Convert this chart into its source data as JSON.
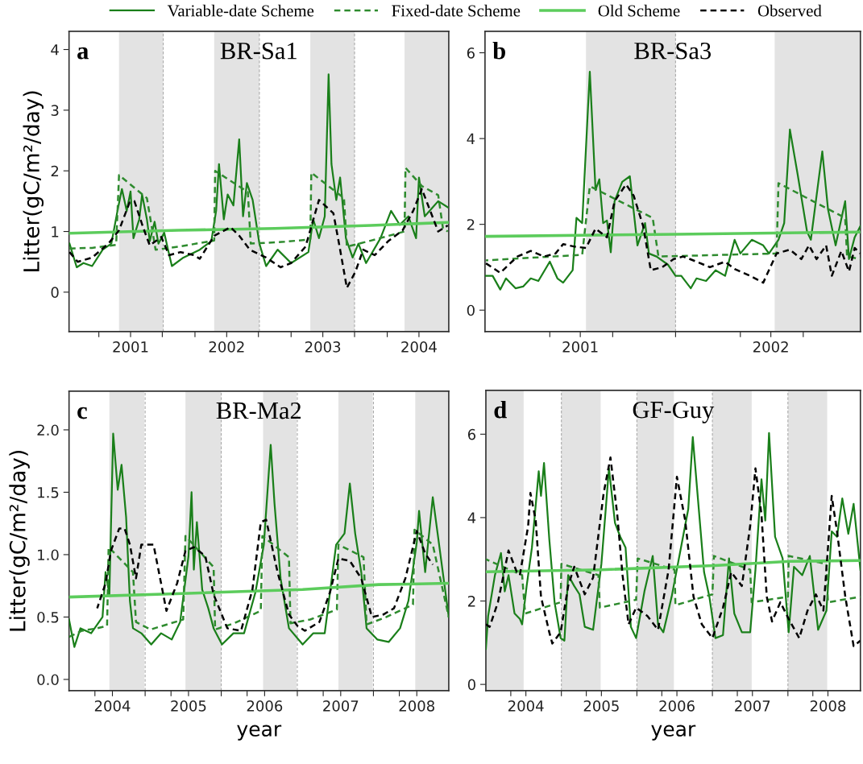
{
  "chart_data": [
    {
      "type": "line",
      "title": "BR-Sa1",
      "ylabel": "Litter(gC/m²/day)",
      "annotations": [
        "a"
      ],
      "legend": "top",
      "xlim": [
        2000.36,
        2004.31
      ],
      "ylim": [
        -0.65,
        4.3
      ],
      "yticks": [
        0,
        1,
        2,
        3,
        4
      ],
      "xticks": [
        {
          "value": 2000.67,
          "label": null
        },
        2001,
        {
          "value": 2001.33,
          "label": null
        },
        {
          "value": 2001.67,
          "label": null
        },
        2002,
        {
          "value": 2002.33,
          "label": null
        },
        {
          "value": 2002.67,
          "label": null
        },
        2003,
        {
          "value": 2003.33,
          "label": null
        },
        {
          "value": 2003.67,
          "label": null
        },
        2004
      ],
      "bands": [
        {
          "axis": "x",
          "from": 2000.88,
          "to": 2001.34,
          "color": "#e3e3e3"
        },
        {
          "axis": "x",
          "from": 2001.87,
          "to": 2002.34,
          "color": "#e3e3e3"
        },
        {
          "axis": "x",
          "from": 2002.87,
          "to": 2003.33,
          "color": "#e3e3e3"
        },
        {
          "axis": "x",
          "from": 2003.85,
          "to": 2004.31,
          "color": "#e3e3e3"
        }
      ],
      "ref_lines": [
        {
          "axis": "x",
          "value": 2001.34,
          "color": "#aaaaaa",
          "line_style": "dashed"
        },
        {
          "axis": "x",
          "value": 2002.34,
          "color": "#aaaaaa",
          "line_style": "dashed"
        },
        {
          "axis": "x",
          "value": 2003.33,
          "color": "#aaaaaa",
          "line_style": "dashed"
        }
      ],
      "series": [
        {
          "name": "Variable-date Scheme",
          "color": "#1a7f1a",
          "line_style": "solid",
          "x": [
            2000.365,
            2000.44,
            2000.51,
            2000.6,
            2000.71,
            2000.8,
            2000.87,
            2000.91,
            2000.96,
            2001.0,
            2001.03,
            2001.09,
            2001.12,
            2001.17,
            2001.2,
            2001.25,
            2001.29,
            2001.35,
            2001.39,
            2001.43,
            2001.55,
            2001.72,
            2001.84,
            2001.89,
            2001.92,
            2001.97,
            2002.01,
            2002.07,
            2002.13,
            2002.17,
            2002.21,
            2002.27,
            2002.34,
            2002.41,
            2002.53,
            2002.67,
            2002.85,
            2002.9,
            2002.96,
            2003.02,
            2003.06,
            2003.09,
            2003.14,
            2003.18,
            2003.24,
            2003.31,
            2003.37,
            2003.45,
            2003.6,
            2003.71,
            2003.8,
            2003.89,
            2003.97,
            2004.0,
            2004.06,
            2004.2,
            2004.3
          ],
          "values": [
            0.8,
            0.41,
            0.48,
            0.43,
            0.7,
            0.8,
            1.39,
            1.7,
            1.34,
            1.66,
            0.89,
            1.2,
            1.61,
            1.2,
            0.84,
            1.16,
            0.8,
            0.98,
            0.7,
            0.43,
            0.57,
            0.7,
            0.84,
            1.34,
            2.11,
            1.2,
            1.61,
            1.43,
            2.52,
            1.25,
            1.8,
            1.52,
            0.8,
            0.43,
            0.7,
            0.48,
            0.66,
            1.2,
            0.89,
            1.25,
            3.59,
            2.11,
            1.52,
            1.89,
            0.89,
            0.57,
            0.8,
            0.48,
            0.89,
            1.34,
            1.11,
            1.25,
            0.89,
            1.89,
            1.25,
            1.5,
            1.4
          ]
        },
        {
          "name": "Fixed-date Scheme",
          "color": "#2e8b2e",
          "line_style": "dashed",
          "x": [
            2000.365,
            2000.6,
            2000.85,
            2000.88,
            2001.17,
            2001.26,
            2001.5,
            2001.87,
            2001.88,
            2002.22,
            2002.25,
            2002.6,
            2002.87,
            2002.88,
            2003.22,
            2003.25,
            2003.5,
            2003.85,
            2003.86,
            2004.03,
            2004.2,
            2004.25,
            2004.3
          ],
          "values": [
            0.72,
            0.73,
            0.78,
            1.93,
            1.55,
            0.7,
            0.75,
            0.85,
            2.0,
            1.65,
            0.8,
            0.83,
            0.87,
            1.97,
            1.55,
            0.75,
            0.85,
            1.0,
            2.05,
            1.75,
            1.6,
            1.05,
            1.0
          ]
        },
        {
          "name": "Old Scheme",
          "color": "#5ccc5c",
          "line_style": "solid",
          "x": [
            2000.365,
            2001.5,
            2002.5,
            2003.5,
            2004.3
          ],
          "values": [
            0.97,
            1.02,
            1.05,
            1.1,
            1.15
          ]
        },
        {
          "name": "Observed",
          "color": "#000000",
          "line_style": "dashed",
          "x": [
            2000.365,
            2000.45,
            2000.6,
            2000.77,
            2000.88,
            2000.99,
            2001.04,
            2001.13,
            2001.2,
            2001.32,
            2001.4,
            2001.52,
            2001.66,
            2001.72,
            2001.87,
            2002.04,
            2002.13,
            2002.24,
            2002.41,
            2002.56,
            2002.67,
            2002.82,
            2002.96,
            2003.11,
            2003.18,
            2003.25,
            2003.34,
            2003.42,
            2003.54,
            2003.68,
            2003.83,
            2003.94,
            2004.03,
            2004.2,
            2004.3
          ],
          "values": [
            0.66,
            0.5,
            0.57,
            0.8,
            1.02,
            1.48,
            1.5,
            1.07,
            0.77,
            0.91,
            0.61,
            0.66,
            0.61,
            0.55,
            0.93,
            1.07,
            0.93,
            0.7,
            0.57,
            0.41,
            0.48,
            0.75,
            1.52,
            1.3,
            0.7,
            0.07,
            0.34,
            0.7,
            0.61,
            0.84,
            1.02,
            1.34,
            1.7,
            1.0,
            1.1
          ]
        }
      ]
    },
    {
      "type": "line",
      "title": "BR-Sa3",
      "annotations": [
        "b"
      ],
      "xlim": [
        2000.5,
        2002.47
      ],
      "ylim": [
        -0.5,
        6.5
      ],
      "yticks": [
        0,
        2,
        4,
        6
      ],
      "xticks": [
        {
          "value": 2000.84,
          "label": null
        },
        2001,
        {
          "value": 2001.17,
          "label": null
        },
        {
          "value": 2001.5,
          "label": null
        },
        {
          "value": 2001.84,
          "label": null
        },
        2002,
        {
          "value": 2002.17,
          "label": null
        }
      ],
      "bands": [
        {
          "axis": "x",
          "from": 2001.03,
          "to": 2001.5,
          "color": "#e3e3e3"
        },
        {
          "axis": "x",
          "from": 2002.02,
          "to": 2002.47,
          "color": "#e3e3e3"
        }
      ],
      "ref_lines": [
        {
          "axis": "x",
          "value": 2001.5,
          "color": "#aaaaaa",
          "line_style": "dashed"
        }
      ],
      "series": [
        {
          "color": "#1a7f1a",
          "line_style": "solid",
          "x": [
            2000.505,
            2000.54,
            2000.58,
            2000.61,
            2000.66,
            2000.7,
            2000.74,
            2000.78,
            2000.84,
            2000.88,
            2000.91,
            2000.96,
            2000.98,
            2001.01,
            2001.05,
            2001.08,
            2001.1,
            2001.12,
            2001.14,
            2001.16,
            2001.18,
            2001.22,
            2001.26,
            2001.3,
            2001.34,
            2001.36,
            2001.4,
            2001.46,
            2001.5,
            2001.53,
            2001.58,
            2001.61,
            2001.66,
            2001.71,
            2001.76,
            2001.81,
            2001.84,
            2001.9,
            2001.96,
            2001.99,
            2002.04,
            2002.07,
            2002.1,
            2002.14,
            2002.19,
            2002.21,
            2002.27,
            2002.3,
            2002.34,
            2002.39,
            2002.41,
            2002.44,
            2002.47
          ],
          "values": [
            0.8,
            0.8,
            0.48,
            0.74,
            0.51,
            0.55,
            0.74,
            0.68,
            1.13,
            0.74,
            0.64,
            0.93,
            2.15,
            2.03,
            5.56,
            2.8,
            3.05,
            2.03,
            2.09,
            1.35,
            2.54,
            2.99,
            3.12,
            1.51,
            2.03,
            1.32,
            1.25,
            1.06,
            0.8,
            0.8,
            0.51,
            0.74,
            0.68,
            0.93,
            0.8,
            1.64,
            1.32,
            1.64,
            1.51,
            1.32,
            1.64,
            2.03,
            4.21,
            3.18,
            1.83,
            1.64,
            3.7,
            2.35,
            1.51,
            2.54,
            1.19,
            1.7,
            1.96
          ]
        },
        {
          "color": "#2e8b2e",
          "line_style": "dashed",
          "x": [
            2000.505,
            2001.01,
            2001.05,
            2001.38,
            2001.41,
            2002.03,
            2002.04,
            2002.39,
            2002.4,
            2002.47
          ],
          "values": [
            1.16,
            1.29,
            2.89,
            2.15,
            1.25,
            1.32,
            2.96,
            2.15,
            1.25,
            1.19
          ]
        },
        {
          "color": "#5ccc5c",
          "line_style": "solid",
          "x": [
            2000.505,
            2001.5,
            2002.47
          ],
          "values": [
            1.72,
            1.77,
            1.82
          ]
        },
        {
          "color": "#000000",
          "line_style": "dashed",
          "x": [
            2000.505,
            2000.58,
            2000.67,
            2000.74,
            2000.81,
            2000.87,
            2000.91,
            2000.97,
            2001.03,
            2001.08,
            2001.14,
            2001.18,
            2001.24,
            2001.28,
            2001.33,
            2001.37,
            2001.43,
            2001.49,
            2001.54,
            2001.61,
            2001.68,
            2001.76,
            2001.81,
            2001.89,
            2001.96,
            2002.03,
            2002.1,
            2002.16,
            2002.2,
            2002.24,
            2002.29,
            2002.32,
            2002.37,
            2002.41,
            2002.44,
            2002.47
          ],
          "values": [
            1.09,
            0.87,
            1.25,
            1.38,
            1.25,
            1.32,
            1.54,
            1.48,
            1.45,
            1.9,
            1.7,
            2.54,
            2.93,
            2.67,
            1.96,
            0.93,
            1.0,
            1.19,
            1.25,
            1.13,
            1.0,
            1.13,
            0.96,
            0.8,
            0.64,
            1.32,
            1.41,
            1.19,
            1.51,
            1.19,
            1.51,
            0.8,
            1.38,
            0.9,
            1.45,
            1.32
          ]
        }
      ]
    },
    {
      "type": "line",
      "title": "BR-Ma2",
      "ylabel": "Litter(gC/m²/day)",
      "xlabel": "year",
      "annotations": [
        "c"
      ],
      "xlim": [
        2003.43,
        2008.42
      ],
      "ylim": [
        -0.09,
        2.31
      ],
      "yticks": [
        {
          "value": 0,
          "label": "0.0"
        },
        0.5,
        {
          "value": 1,
          "label": "1.0"
        },
        1.5,
        {
          "value": 2,
          "label": "2.0"
        }
      ],
      "xticks": [
        {
          "value": 2003.77,
          "label": null
        },
        2004,
        {
          "value": 2004.43,
          "label": null
        },
        {
          "value": 2004.77,
          "label": null
        },
        2005,
        {
          "value": 2005.43,
          "label": null
        },
        {
          "value": 2005.77,
          "label": null
        },
        2006,
        {
          "value": 2006.43,
          "label": null
        },
        {
          "value": 2006.77,
          "label": null
        },
        2007,
        {
          "value": 2007.43,
          "label": null
        },
        {
          "value": 2007.77,
          "label": null
        },
        2008
      ],
      "bands": [
        {
          "axis": "x",
          "from": 2003.96,
          "to": 2004.42,
          "color": "#e3e3e3"
        },
        {
          "axis": "x",
          "from": 2004.96,
          "to": 2005.43,
          "color": "#e3e3e3"
        },
        {
          "axis": "x",
          "from": 2005.98,
          "to": 2006.42,
          "color": "#e3e3e3"
        },
        {
          "axis": "x",
          "from": 2006.97,
          "to": 2007.42,
          "color": "#e3e3e3"
        },
        {
          "axis": "x",
          "from": 2007.98,
          "to": 2008.42,
          "color": "#e3e3e3"
        }
      ],
      "ref_lines": [
        {
          "axis": "x",
          "value": 2004.43,
          "color": "#aaaaaa",
          "line_style": "dashed"
        },
        {
          "axis": "x",
          "value": 2005.43,
          "color": "#aaaaaa",
          "line_style": "dashed"
        },
        {
          "axis": "x",
          "value": 2006.43,
          "color": "#aaaaaa",
          "line_style": "dashed"
        },
        {
          "axis": "x",
          "value": 2007.43,
          "color": "#aaaaaa",
          "line_style": "dashed"
        }
      ],
      "series": [
        {
          "color": "#1a7f1a",
          "line_style": "solid",
          "x": [
            2003.43,
            2003.5,
            2003.58,
            2003.72,
            2003.87,
            2003.91,
            2003.96,
            2004.01,
            2004.07,
            2004.12,
            2004.18,
            2004.23,
            2004.27,
            2004.38,
            2004.51,
            2004.64,
            2004.78,
            2004.89,
            2005.0,
            2005.04,
            2005.07,
            2005.11,
            2005.18,
            2005.26,
            2005.33,
            2005.44,
            2005.59,
            2005.73,
            2005.88,
            2005.99,
            2006.08,
            2006.13,
            2006.21,
            2006.32,
            2006.5,
            2006.64,
            2006.79,
            2006.94,
            2007.05,
            2007.12,
            2007.19,
            2007.27,
            2007.34,
            2007.48,
            2007.63,
            2007.78,
            2007.89,
            2008.0,
            2008.03,
            2008.11,
            2008.21,
            2008.42
          ],
          "values": [
            0.48,
            0.26,
            0.41,
            0.37,
            0.5,
            0.86,
            0.68,
            1.97,
            1.52,
            1.72,
            1.3,
            0.63,
            0.41,
            0.37,
            0.28,
            0.37,
            0.32,
            0.46,
            0.99,
            1.5,
            0.88,
            1.26,
            0.72,
            0.57,
            0.41,
            0.28,
            0.37,
            0.37,
            0.7,
            1.08,
            1.88,
            1.41,
            0.81,
            0.41,
            0.28,
            0.37,
            0.37,
            1.08,
            1.17,
            1.57,
            1.17,
            0.86,
            0.41,
            0.32,
            0.3,
            0.41,
            0.63,
            1.1,
            1.35,
            0.86,
            1.46,
            0.5
          ]
        },
        {
          "color": "#2e8b2e",
          "line_style": "dashed",
          "x": [
            2003.43,
            2003.6,
            2003.8,
            2003.93,
            2003.95,
            2004.27,
            2004.31,
            2004.5,
            2004.93,
            2004.96,
            2005.33,
            2005.35,
            2005.6,
            2005.95,
            2005.97,
            2006.32,
            2006.34,
            2006.6,
            2006.95,
            2006.97,
            2007.3,
            2007.34,
            2007.6,
            2007.95,
            2007.97,
            2008.21,
            2008.42
          ],
          "values": [
            0.34,
            0.39,
            0.41,
            0.43,
            1.06,
            0.86,
            0.46,
            0.4,
            0.48,
            1.15,
            0.9,
            0.4,
            0.45,
            0.55,
            1.15,
            0.98,
            0.45,
            0.48,
            0.56,
            1.08,
            0.98,
            0.44,
            0.5,
            0.6,
            1.2,
            1.08,
            0.5
          ]
        },
        {
          "color": "#5ccc5c",
          "line_style": "solid",
          "x": [
            2003.43,
            2005.0,
            2006.5,
            2007.5,
            2008.42
          ],
          "values": [
            0.66,
            0.69,
            0.72,
            0.76,
            0.77
          ]
        },
        {
          "color": "#000000",
          "line_style": "dashed",
          "x": [
            2003.8,
            2003.91,
            2003.98,
            2004.09,
            2004.16,
            2004.23,
            2004.31,
            2004.38,
            2004.42,
            2004.54,
            2004.71,
            2004.85,
            2004.96,
            2005.07,
            2005.22,
            2005.33,
            2005.51,
            2005.69,
            2005.84,
            2005.95,
            2006.02,
            2006.17,
            2006.32,
            2006.43,
            2006.53,
            2006.72,
            2006.86,
            2006.97,
            2007.12,
            2007.27,
            2007.41,
            2007.56,
            2007.7,
            2007.85,
            2008.0,
            2008.11,
            2008.21
          ],
          "values": [
            0.57,
            0.77,
            1.03,
            1.21,
            1.21,
            1.08,
            0.81,
            1.08,
            1.08,
            1.08,
            0.55,
            0.77,
            1.03,
            1.06,
            0.99,
            0.68,
            0.41,
            0.39,
            0.72,
            1.26,
            1.28,
            0.86,
            0.52,
            0.43,
            0.39,
            0.46,
            0.7,
            0.97,
            0.95,
            0.81,
            0.5,
            0.52,
            0.57,
            0.81,
            1.19,
            1.01,
            0.92
          ]
        }
      ]
    },
    {
      "type": "line",
      "title": "GF-Guy",
      "xlabel": "year",
      "annotations": [
        "d"
      ],
      "xlim": [
        2003.47,
        2008.43
      ],
      "ylim": [
        -0.15,
        7.05
      ],
      "yticks": [
        0,
        2,
        4,
        6
      ],
      "xticks": [
        {
          "value": 2003.8,
          "label": null
        },
        2004,
        {
          "value": 2004.47,
          "label": null
        },
        {
          "value": 2004.8,
          "label": null
        },
        2005,
        {
          "value": 2005.47,
          "label": null
        },
        {
          "value": 2005.8,
          "label": null
        },
        2006,
        {
          "value": 2006.47,
          "label": null
        },
        {
          "value": 2006.8,
          "label": null
        },
        2007,
        {
          "value": 2007.47,
          "label": null
        },
        {
          "value": 2007.8,
          "label": null
        },
        2008
      ],
      "bands": [
        {
          "axis": "x",
          "from": 2003.47,
          "to": 2003.97,
          "color": "#e3e3e3"
        },
        {
          "axis": "x",
          "from": 2004.47,
          "to": 2004.99,
          "color": "#e3e3e3"
        },
        {
          "axis": "x",
          "from": 2005.47,
          "to": 2005.96,
          "color": "#e3e3e3"
        },
        {
          "axis": "x",
          "from": 2006.47,
          "to": 2006.99,
          "color": "#e3e3e3"
        },
        {
          "axis": "x",
          "from": 2007.47,
          "to": 2007.99,
          "color": "#e3e3e3"
        }
      ],
      "ref_lines": [
        {
          "axis": "x",
          "value": 2004.47,
          "color": "#aaaaaa",
          "line_style": "dashed"
        },
        {
          "axis": "x",
          "value": 2005.47,
          "color": "#aaaaaa",
          "line_style": "dashed"
        },
        {
          "axis": "x",
          "value": 2006.47,
          "color": "#aaaaaa",
          "line_style": "dashed"
        },
        {
          "axis": "x",
          "value": 2007.47,
          "color": "#aaaaaa",
          "line_style": "dashed"
        }
      ],
      "series": [
        {
          "color": "#1a7f1a",
          "line_style": "solid",
          "x": [
            2003.47,
            2003.5,
            2003.59,
            2003.67,
            2003.72,
            2003.77,
            2003.85,
            2003.92,
            2003.95,
            2004.01,
            2004.08,
            2004.17,
            2004.2,
            2004.24,
            2004.31,
            2004.38,
            2004.46,
            2004.51,
            2004.56,
            2004.64,
            2004.71,
            2004.78,
            2004.89,
            2005.0,
            2005.1,
            2005.18,
            2005.25,
            2005.32,
            2005.39,
            2005.46,
            2005.57,
            2005.68,
            2005.75,
            2005.82,
            2005.93,
            2006.04,
            2006.15,
            2006.21,
            2006.29,
            2006.36,
            2006.43,
            2006.51,
            2006.61,
            2006.69,
            2006.76,
            2006.86,
            2006.97,
            2007.04,
            2007.12,
            2007.17,
            2007.22,
            2007.3,
            2007.4,
            2007.48,
            2007.55,
            2007.66,
            2007.76,
            2007.87,
            2007.98,
            2008.05,
            2008.12,
            2008.19,
            2008.27,
            2008.34,
            2008.43
          ],
          "values": [
            0.85,
            1.64,
            2.62,
            3.15,
            2.23,
            2.62,
            1.7,
            1.57,
            1.44,
            2.36,
            3.28,
            5.11,
            4.52,
            5.31,
            3.48,
            1.97,
            1.11,
            1.05,
            2.62,
            2.36,
            2.16,
            1.38,
            1.31,
            2.89,
            5.18,
            3.87,
            3.54,
            3.28,
            1.38,
            1.11,
            2.23,
            3.08,
            1.44,
            1.25,
            2.1,
            3.15,
            4.2,
            5.93,
            4.2,
            2.69,
            2.1,
            1.11,
            1.18,
            3.02,
            1.7,
            1.25,
            1.25,
            2.75,
            4.92,
            3.93,
            6.03,
            3.54,
            3.02,
            1.25,
            2.82,
            2.62,
            3.08,
            1.31,
            1.77,
            3.67,
            3.54,
            4.46,
            3.61,
            4.33,
            2.75
          ]
        },
        {
          "color": "#2e8b2e",
          "line_style": "dashed",
          "x": [
            2003.47,
            2003.95,
            2003.99,
            2004.46,
            2004.47,
            2004.96,
            2004.98,
            2005.46,
            2005.48,
            2005.97,
            2005.98,
            2006.47,
            2006.49,
            2006.97,
            2006.99,
            2007.47,
            2007.48,
            2007.98,
            2008.0,
            2008.43
          ],
          "values": [
            3.0,
            2.62,
            1.7,
            1.97,
            2.89,
            2.62,
            1.84,
            2.03,
            3.02,
            2.75,
            1.9,
            2.16,
            3.08,
            2.75,
            1.97,
            2.1,
            3.08,
            2.89,
            1.97,
            2.1
          ]
        },
        {
          "color": "#5ccc5c",
          "line_style": "solid",
          "x": [
            2003.47,
            2005.0,
            2006.5,
            2007.5,
            2008.43
          ],
          "values": [
            2.7,
            2.75,
            2.85,
            2.95,
            2.97
          ]
        },
        {
          "color": "#000000",
          "line_style": "dashed",
          "x": [
            2003.47,
            2003.52,
            2003.63,
            2003.77,
            2003.88,
            2003.92,
            2004.03,
            2004.06,
            2004.13,
            2004.2,
            2004.31,
            2004.35,
            2004.46,
            2004.56,
            2004.64,
            2004.78,
            2004.89,
            2005.03,
            2005.12,
            2005.21,
            2005.28,
            2005.36,
            2005.46,
            2005.61,
            2005.75,
            2005.89,
            2006.0,
            2006.11,
            2006.22,
            2006.33,
            2006.47,
            2006.61,
            2006.72,
            2006.86,
            2006.97,
            2007.04,
            2007.12,
            2007.19,
            2007.26,
            2007.37,
            2007.48,
            2007.62,
            2007.73,
            2007.84,
            2007.94,
            2008.05,
            2008.12,
            2008.23,
            2008.34,
            2008.43
          ],
          "values": [
            1.44,
            1.38,
            1.97,
            3.21,
            2.69,
            2.62,
            3.8,
            4.59,
            3.93,
            2.1,
            1.25,
            0.98,
            1.25,
            2.36,
            2.82,
            2.16,
            2.56,
            4.59,
            5.44,
            4.07,
            2.62,
            1.44,
            1.84,
            1.64,
            1.31,
            2.75,
            4.98,
            3.93,
            2.1,
            1.44,
            1.11,
            1.84,
            2.69,
            2.36,
            3.8,
            5.18,
            4.07,
            2.1,
            1.51,
            1.97,
            1.57,
            1.11,
            1.77,
            2.16,
            1.77,
            4.52,
            3.67,
            2.1,
            0.92,
            1.05
          ]
        }
      ]
    }
  ]
}
